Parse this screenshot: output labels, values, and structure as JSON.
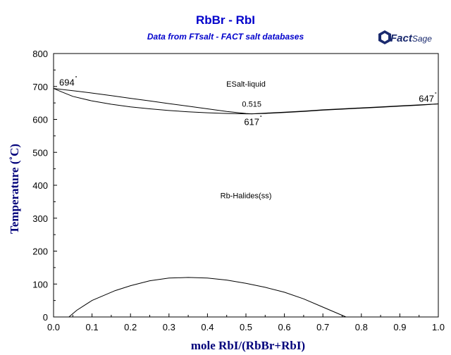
{
  "chart_data": {
    "type": "line",
    "title": "RbBr - RbI",
    "subtitle": "Data from FTsalt - FACT salt databases",
    "xlabel": "mole RbI/(RbBr+RbI)",
    "ylabel": "Temperature (˚C)",
    "xlim": [
      0,
      1
    ],
    "ylim": [
      0,
      800
    ],
    "xticks": [
      "0.0",
      "0.1",
      "0.2",
      "0.3",
      "0.4",
      "0.5",
      "0.6",
      "0.7",
      "0.8",
      "0.9",
      "1.0"
    ],
    "yticks": [
      "0",
      "100",
      "200",
      "300",
      "400",
      "500",
      "600",
      "700",
      "800"
    ],
    "grid": false,
    "legend": "none",
    "series": [
      {
        "x": [
          0,
          0.05,
          0.1,
          0.15,
          0.2,
          0.25,
          0.3,
          0.35,
          0.4,
          0.45,
          0.5,
          0.515,
          0.55,
          0.6,
          0.65,
          0.7,
          0.75,
          0.8,
          0.85,
          0.9,
          0.95,
          1.0
        ],
        "y": [
          694,
          687,
          680,
          672,
          664,
          656,
          648,
          640,
          632,
          624,
          618,
          617,
          619,
          622,
          625,
          629,
          632,
          635,
          638,
          641,
          644,
          647
        ]
      },
      {
        "x": [
          0,
          0.02,
          0.05,
          0.1,
          0.15,
          0.2,
          0.25,
          0.3,
          0.35,
          0.4,
          0.45,
          0.5,
          0.515,
          0.55,
          0.6,
          0.65,
          0.7,
          0.75,
          0.8,
          0.85,
          0.9,
          0.95,
          1.0
        ],
        "y": [
          694,
          684,
          670,
          656,
          646,
          638,
          632,
          627,
          623,
          620,
          618,
          617,
          617,
          618,
          621,
          624,
          628,
          631,
          634,
          637,
          640,
          643,
          647
        ]
      },
      {
        "x": [
          0.04,
          0.06,
          0.08,
          0.1,
          0.13,
          0.16,
          0.2,
          0.25,
          0.3,
          0.35,
          0.4,
          0.45,
          0.5,
          0.55,
          0.6,
          0.65,
          0.7,
          0.73,
          0.76
        ],
        "y": [
          0,
          20,
          35,
          50,
          65,
          80,
          95,
          110,
          118,
          120,
          118,
          112,
          102,
          90,
          75,
          55,
          30,
          15,
          0
        ]
      }
    ],
    "annotations": [
      {
        "text": "694",
        "x": 0.0,
        "y": 694
      },
      {
        "text": "647",
        "x": 1.0,
        "y": 647
      },
      {
        "text": "0.515",
        "x": 0.515,
        "y": 617
      },
      {
        "text": "617",
        "x": 0.515,
        "y": 617
      },
      {
        "text": "ESalt-liquid",
        "x": 0.5,
        "y": 700
      },
      {
        "text": "Rb-Halides(ss)",
        "x": 0.5,
        "y": 360
      }
    ]
  },
  "logo": {
    "word": "Fact",
    "word2": "Sage"
  }
}
